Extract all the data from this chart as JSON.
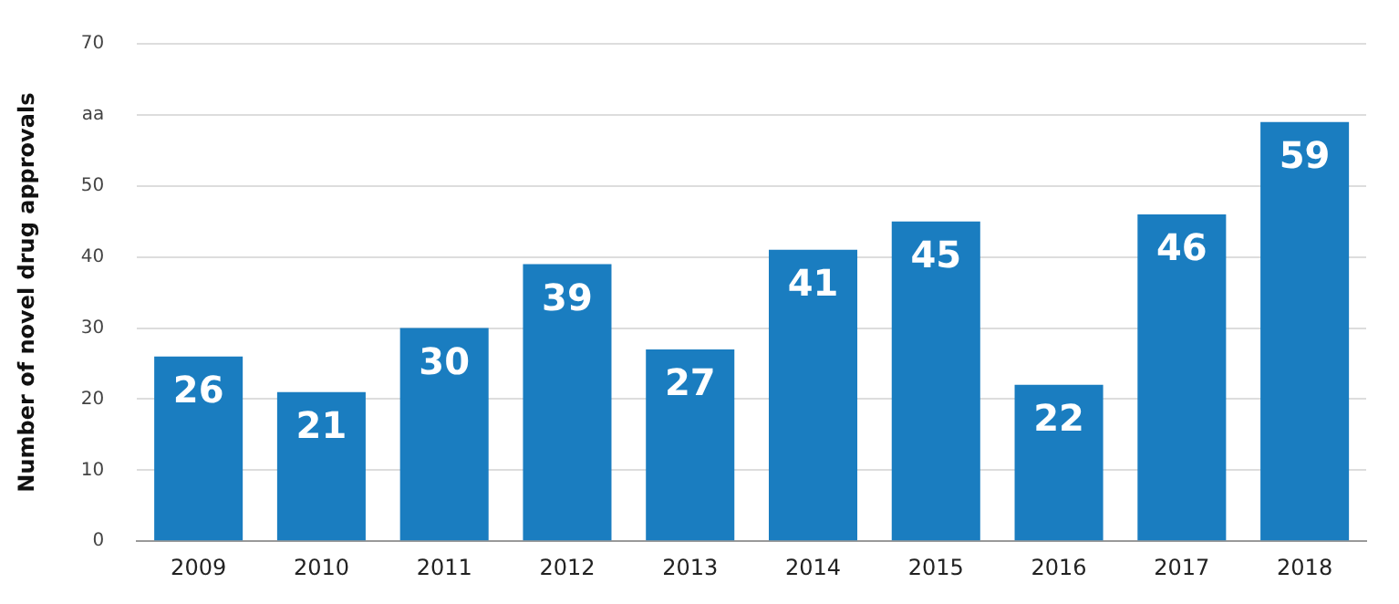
{
  "chart_data": {
    "type": "bar",
    "ylabel": "Number of novel drug approvals",
    "categories": [
      "2009",
      "2010",
      "2011",
      "2012",
      "2013",
      "2014",
      "2015",
      "2016",
      "2017",
      "2018"
    ],
    "values": [
      26,
      21,
      30,
      39,
      27,
      41,
      45,
      22,
      46,
      59
    ],
    "color": "#1a7dc0",
    "ylim": [
      0,
      70
    ],
    "yticks": [
      0,
      10,
      20,
      30,
      40,
      50,
      {
        "value": 60,
        "label": "aa"
      },
      70
    ],
    "grid": "y",
    "data_labels": true,
    "legend": false
  }
}
